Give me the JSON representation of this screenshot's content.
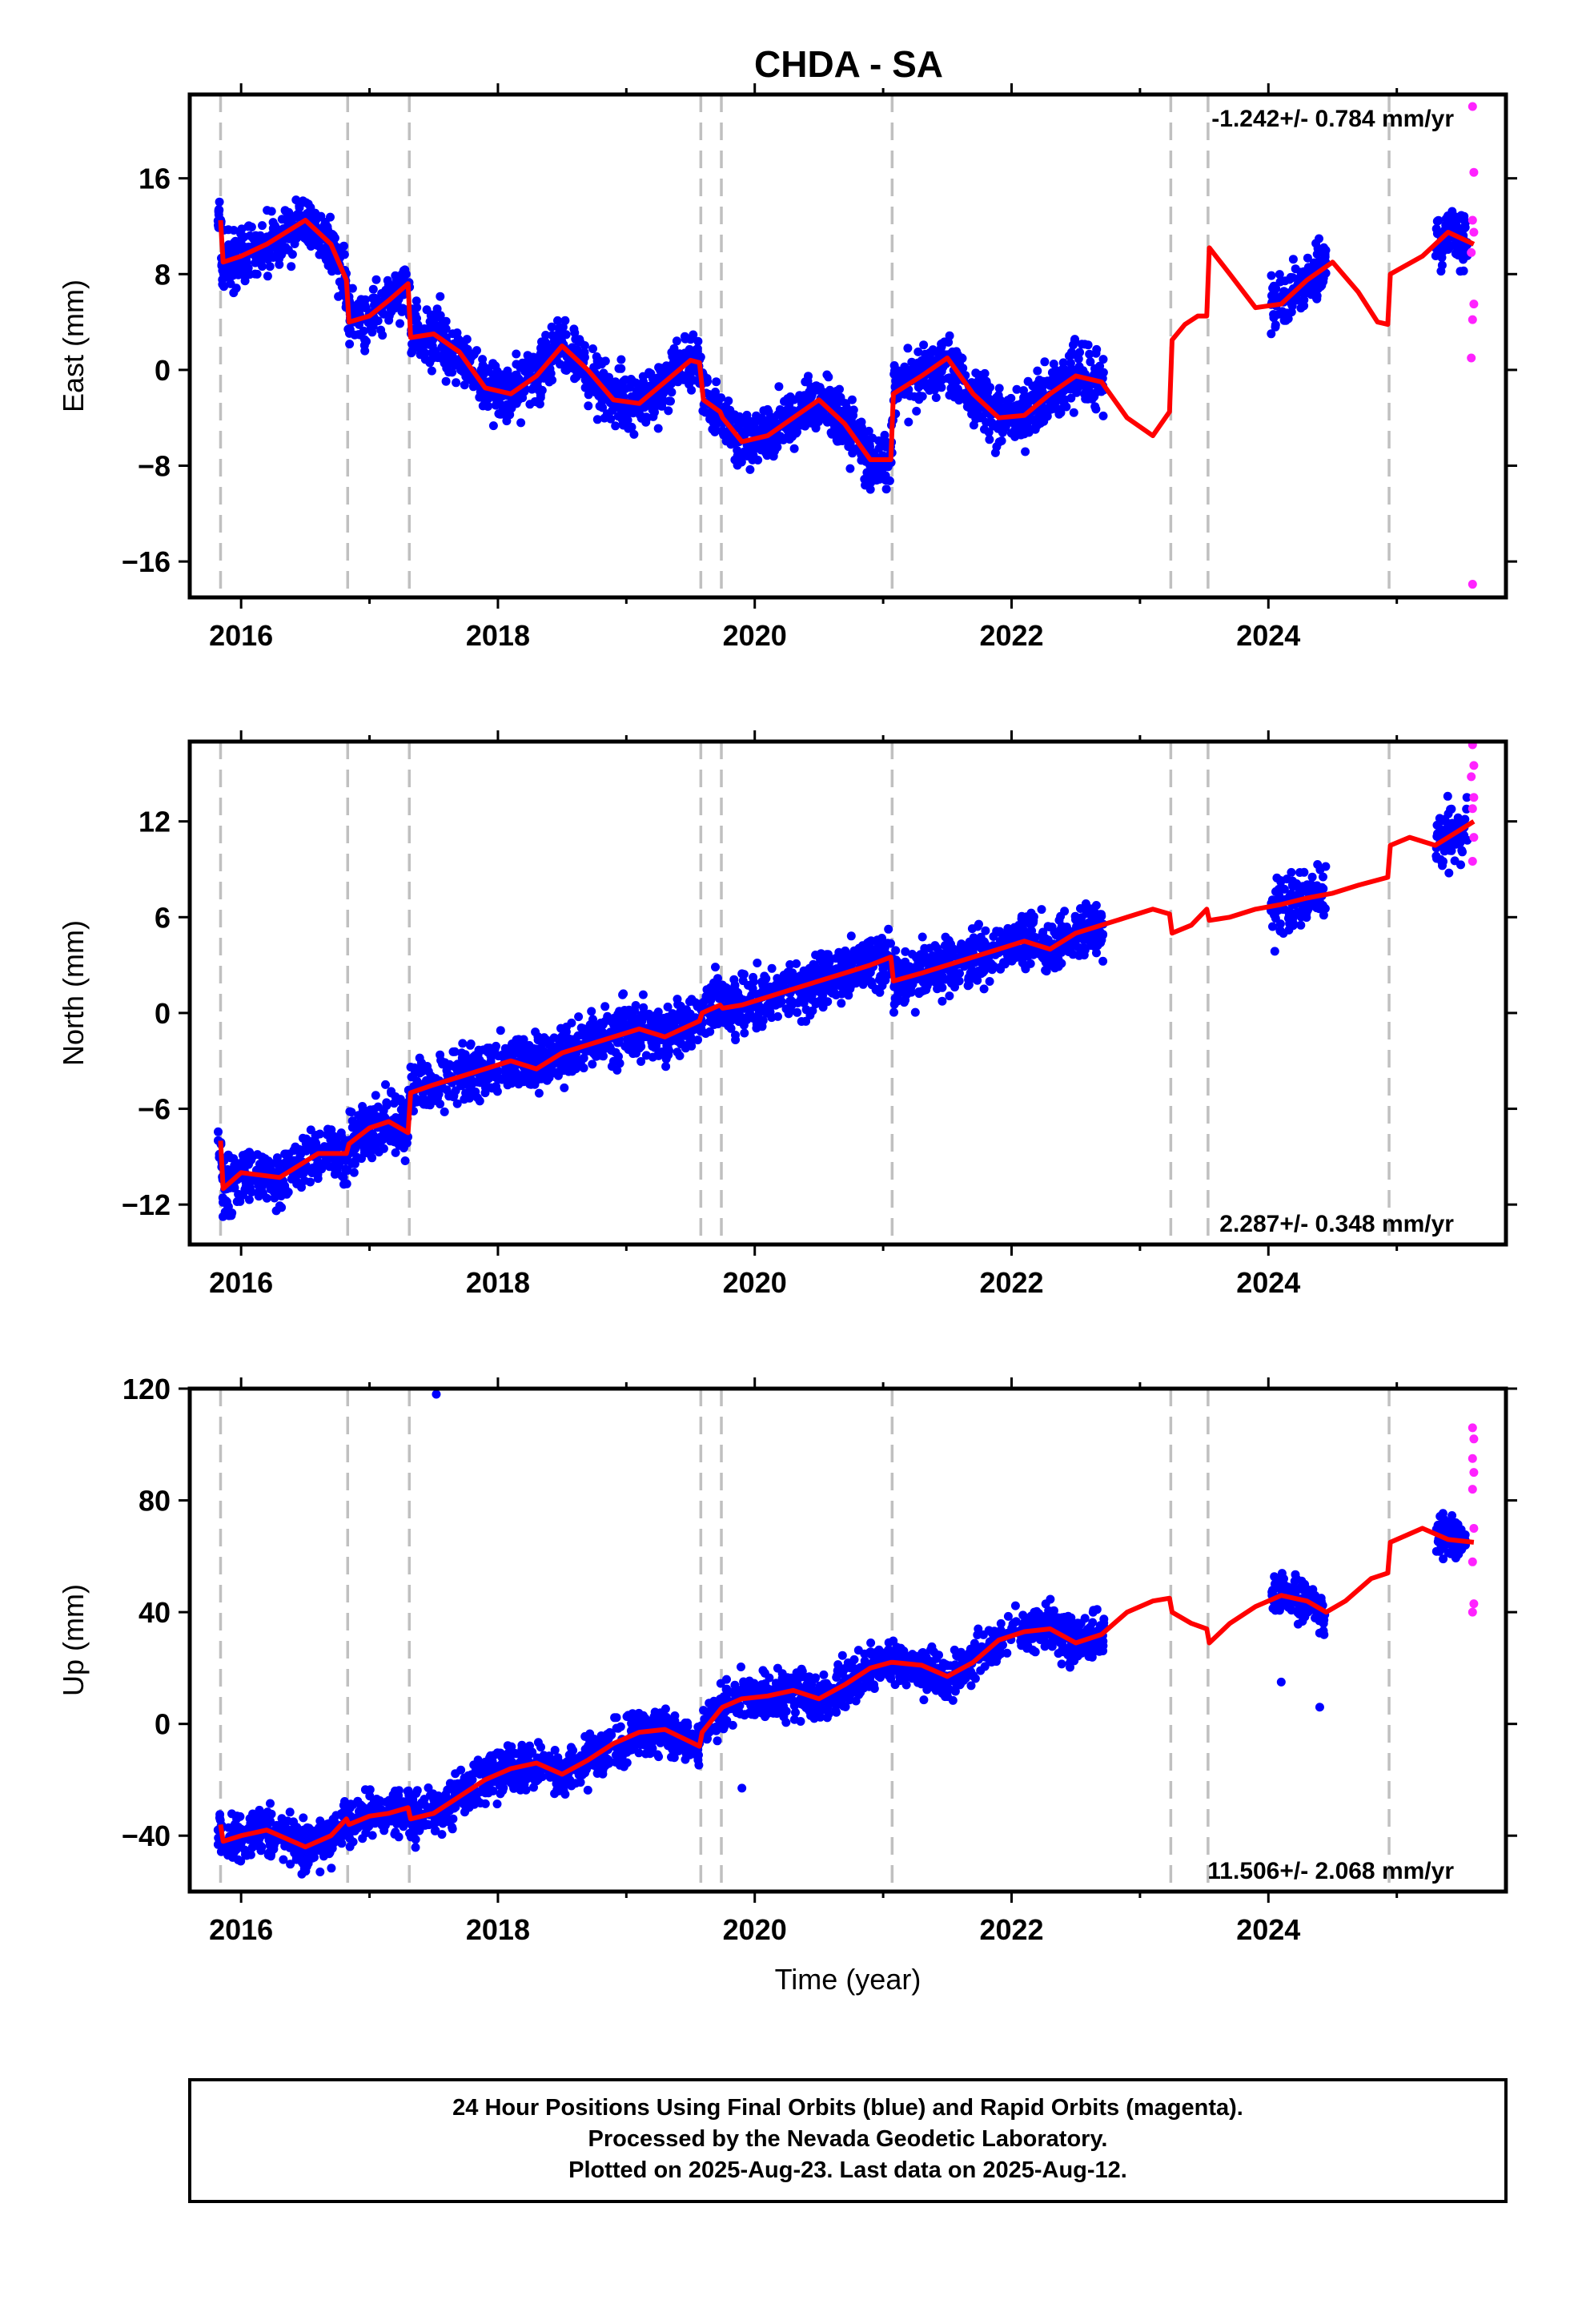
{
  "title": "CHDA - SA",
  "colors": {
    "final_orbits": "#0000ff",
    "rapid_orbits": "#ff22ff",
    "model": "#ff0000",
    "event_lines": "#c0c0c0",
    "frame": "#000000"
  },
  "chart_data": [
    {
      "type": "scatter",
      "id": "east",
      "ylabel": "East (mm)",
      "xlabel": "",
      "xlim": [
        2015.6,
        2025.85
      ],
      "ylim": [
        -19,
        23
      ],
      "xticks": [
        "2016",
        "2018",
        "2020",
        "2022",
        "2024"
      ],
      "yticks": [
        "16",
        "8",
        "0",
        "−8",
        "−16"
      ],
      "rate_text": "-1.242+/- 0.784 mm/yr",
      "rate_position": "top-right",
      "grid": false,
      "event_lines": [
        2015.84,
        2016.83,
        2017.31,
        2019.58,
        2019.74,
        2021.07,
        2023.24,
        2023.53,
        2024.94
      ],
      "data_ranges": [
        [
          2015.82,
          2022.72
        ],
        [
          2024.02,
          2024.45
        ],
        [
          2025.3,
          2025.55
        ]
      ],
      "model_curve": [
        [
          2015.84,
          12.5
        ],
        [
          2015.86,
          9.0
        ],
        [
          2016.0,
          9.5
        ],
        [
          2016.2,
          10.5
        ],
        [
          2016.5,
          12.5
        ],
        [
          2016.7,
          10.5
        ],
        [
          2016.82,
          7.5
        ],
        [
          2016.84,
          4.0
        ],
        [
          2017.0,
          4.5
        ],
        [
          2017.15,
          5.8
        ],
        [
          2017.3,
          7.2
        ],
        [
          2017.32,
          2.7
        ],
        [
          2017.5,
          3.0
        ],
        [
          2017.7,
          1.5
        ],
        [
          2017.9,
          -1.5
        ],
        [
          2018.1,
          -2.0
        ],
        [
          2018.3,
          -0.5
        ],
        [
          2018.5,
          2.0
        ],
        [
          2018.7,
          0.0
        ],
        [
          2018.9,
          -2.5
        ],
        [
          2019.1,
          -2.8
        ],
        [
          2019.3,
          -1.0
        ],
        [
          2019.5,
          0.8
        ],
        [
          2019.57,
          0.6
        ],
        [
          2019.6,
          -2.5
        ],
        [
          2019.73,
          -3.5
        ],
        [
          2019.75,
          -4.0
        ],
        [
          2019.9,
          -6.0
        ],
        [
          2020.1,
          -5.5
        ],
        [
          2020.3,
          -4.0
        ],
        [
          2020.5,
          -2.5
        ],
        [
          2020.7,
          -4.5
        ],
        [
          2020.9,
          -7.5
        ],
        [
          2021.06,
          -7.5
        ],
        [
          2021.08,
          -2.0
        ],
        [
          2021.3,
          -0.5
        ],
        [
          2021.5,
          1.0
        ],
        [
          2021.7,
          -2.0
        ],
        [
          2021.9,
          -4.0
        ],
        [
          2022.1,
          -3.8
        ],
        [
          2022.3,
          -2.0
        ],
        [
          2022.5,
          -0.5
        ],
        [
          2022.7,
          -1.0
        ],
        [
          2022.9,
          -4.0
        ],
        [
          2023.1,
          -5.5
        ],
        [
          2023.23,
          -3.5
        ],
        [
          2023.25,
          2.5
        ],
        [
          2023.35,
          3.8
        ],
        [
          2023.45,
          4.5
        ],
        [
          2023.52,
          4.5
        ],
        [
          2023.54,
          10.2
        ],
        [
          2023.7,
          8.0
        ],
        [
          2023.9,
          5.2
        ],
        [
          2024.1,
          5.5
        ],
        [
          2024.3,
          7.5
        ],
        [
          2024.5,
          9.0
        ],
        [
          2024.7,
          6.5
        ],
        [
          2024.85,
          4.0
        ],
        [
          2024.93,
          3.8
        ],
        [
          2024.95,
          8.0
        ],
        [
          2025.2,
          9.5
        ],
        [
          2025.4,
          11.5
        ],
        [
          2025.6,
          10.5
        ]
      ],
      "rapid_points": [
        [
          2025.59,
          22.0
        ],
        [
          2025.6,
          16.5
        ],
        [
          2025.59,
          12.5
        ],
        [
          2025.6,
          11.5
        ],
        [
          2025.58,
          9.8
        ],
        [
          2025.6,
          5.5
        ],
        [
          2025.59,
          4.2
        ],
        [
          2025.58,
          1.0
        ],
        [
          2025.59,
          -17.9
        ]
      ]
    },
    {
      "type": "scatter",
      "id": "north",
      "ylabel": "North (mm)",
      "xlabel": "",
      "xlim": [
        2015.6,
        2025.85
      ],
      "ylim": [
        -14.5,
        17
      ],
      "xticks": [
        "2016",
        "2018",
        "2020",
        "2022",
        "2024"
      ],
      "yticks": [
        "12",
        "6",
        "0",
        "−6",
        "−12"
      ],
      "rate_text": "2.287+/- 0.348 mm/yr",
      "rate_position": "bottom-right",
      "grid": false,
      "event_lines": [
        2015.84,
        2016.83,
        2017.31,
        2019.58,
        2019.74,
        2021.07,
        2023.24,
        2023.53,
        2024.94
      ],
      "data_ranges": [
        [
          2015.82,
          2022.72
        ],
        [
          2024.02,
          2024.45
        ],
        [
          2025.3,
          2025.55
        ]
      ],
      "model_curve": [
        [
          2015.84,
          -8.0
        ],
        [
          2015.86,
          -11.0
        ],
        [
          2016.0,
          -10.0
        ],
        [
          2016.3,
          -10.3
        ],
        [
          2016.6,
          -8.8
        ],
        [
          2016.82,
          -8.8
        ],
        [
          2016.84,
          -8.2
        ],
        [
          2017.0,
          -7.2
        ],
        [
          2017.15,
          -6.8
        ],
        [
          2017.3,
          -7.5
        ],
        [
          2017.32,
          -5.0
        ],
        [
          2017.5,
          -4.5
        ],
        [
          2017.7,
          -4.0
        ],
        [
          2017.9,
          -3.5
        ],
        [
          2018.1,
          -3.0
        ],
        [
          2018.3,
          -3.5
        ],
        [
          2018.5,
          -2.5
        ],
        [
          2018.7,
          -2.0
        ],
        [
          2018.9,
          -1.5
        ],
        [
          2019.1,
          -1.0
        ],
        [
          2019.3,
          -1.5
        ],
        [
          2019.57,
          -0.5
        ],
        [
          2019.59,
          0.0
        ],
        [
          2019.73,
          0.5
        ],
        [
          2019.75,
          0.3
        ],
        [
          2019.9,
          0.5
        ],
        [
          2020.1,
          1.0
        ],
        [
          2020.3,
          1.5
        ],
        [
          2020.5,
          2.0
        ],
        [
          2020.7,
          2.5
        ],
        [
          2020.9,
          3.0
        ],
        [
          2021.06,
          3.5
        ],
        [
          2021.08,
          2.0
        ],
        [
          2021.3,
          2.5
        ],
        [
          2021.5,
          3.0
        ],
        [
          2021.7,
          3.5
        ],
        [
          2021.9,
          4.0
        ],
        [
          2022.1,
          4.5
        ],
        [
          2022.3,
          4.0
        ],
        [
          2022.5,
          5.0
        ],
        [
          2022.7,
          5.5
        ],
        [
          2022.9,
          6.0
        ],
        [
          2023.1,
          6.5
        ],
        [
          2023.23,
          6.2
        ],
        [
          2023.25,
          5.0
        ],
        [
          2023.4,
          5.5
        ],
        [
          2023.52,
          6.5
        ],
        [
          2023.54,
          5.8
        ],
        [
          2023.7,
          6.0
        ],
        [
          2023.9,
          6.5
        ],
        [
          2024.1,
          6.8
        ],
        [
          2024.3,
          7.2
        ],
        [
          2024.5,
          7.5
        ],
        [
          2024.7,
          8.0
        ],
        [
          2024.93,
          8.5
        ],
        [
          2024.95,
          10.5
        ],
        [
          2025.1,
          11.0
        ],
        [
          2025.3,
          10.5
        ],
        [
          2025.5,
          11.5
        ],
        [
          2025.6,
          12.0
        ]
      ],
      "rapid_points": [
        [
          2025.59,
          16.8
        ],
        [
          2025.6,
          15.5
        ],
        [
          2025.58,
          14.8
        ],
        [
          2025.6,
          13.5
        ],
        [
          2025.59,
          12.8
        ],
        [
          2025.6,
          11.0
        ],
        [
          2025.59,
          9.5
        ]
      ]
    },
    {
      "type": "scatter",
      "id": "up",
      "ylabel": "Up (mm)",
      "xlabel": "Time (year)",
      "xlim": [
        2015.6,
        2025.85
      ],
      "ylim": [
        -60,
        120
      ],
      "xticks": [
        "2016",
        "2018",
        "2020",
        "2022",
        "2024"
      ],
      "yticks": [
        "120",
        "80",
        "40",
        "0",
        "−40"
      ],
      "rate_text": "11.506+/- 2.068 mm/yr",
      "rate_position": "bottom-right",
      "grid": false,
      "event_lines": [
        2015.84,
        2016.83,
        2017.31,
        2019.58,
        2019.74,
        2021.07,
        2023.24,
        2023.53,
        2024.94
      ],
      "data_ranges": [
        [
          2015.82,
          2022.72
        ],
        [
          2024.02,
          2024.45
        ],
        [
          2025.3,
          2025.55
        ]
      ],
      "outliers": [
        [
          2017.52,
          118.0
        ],
        [
          2019.9,
          -23.0
        ],
        [
          2024.1,
          15.0
        ],
        [
          2024.4,
          6.0
        ]
      ],
      "model_curve": [
        [
          2015.84,
          -36.0
        ],
        [
          2015.86,
          -42.0
        ],
        [
          2016.0,
          -40.0
        ],
        [
          2016.2,
          -38.0
        ],
        [
          2016.5,
          -44.0
        ],
        [
          2016.7,
          -40.0
        ],
        [
          2016.82,
          -34.0
        ],
        [
          2016.84,
          -36.0
        ],
        [
          2017.0,
          -33.0
        ],
        [
          2017.15,
          -32.0
        ],
        [
          2017.3,
          -30.0
        ],
        [
          2017.32,
          -34.0
        ],
        [
          2017.5,
          -32.0
        ],
        [
          2017.7,
          -26.0
        ],
        [
          2017.9,
          -20.0
        ],
        [
          2018.1,
          -16.0
        ],
        [
          2018.3,
          -14.0
        ],
        [
          2018.5,
          -18.0
        ],
        [
          2018.7,
          -13.0
        ],
        [
          2018.9,
          -7.0
        ],
        [
          2019.1,
          -3.0
        ],
        [
          2019.3,
          -2.0
        ],
        [
          2019.57,
          -8.0
        ],
        [
          2019.59,
          -3.0
        ],
        [
          2019.73,
          5.0
        ],
        [
          2019.75,
          6.0
        ],
        [
          2019.9,
          9.0
        ],
        [
          2020.1,
          10.0
        ],
        [
          2020.3,
          12.0
        ],
        [
          2020.5,
          9.0
        ],
        [
          2020.7,
          14.0
        ],
        [
          2020.9,
          20.0
        ],
        [
          2021.06,
          22.0
        ],
        [
          2021.08,
          22.0
        ],
        [
          2021.3,
          21.0
        ],
        [
          2021.5,
          17.0
        ],
        [
          2021.7,
          22.0
        ],
        [
          2021.9,
          30.0
        ],
        [
          2022.1,
          33.0
        ],
        [
          2022.3,
          34.0
        ],
        [
          2022.5,
          29.0
        ],
        [
          2022.7,
          32.0
        ],
        [
          2022.9,
          40.0
        ],
        [
          2023.1,
          44.0
        ],
        [
          2023.23,
          45.0
        ],
        [
          2023.25,
          40.0
        ],
        [
          2023.4,
          36.0
        ],
        [
          2023.52,
          34.0
        ],
        [
          2023.54,
          29.0
        ],
        [
          2023.7,
          36.0
        ],
        [
          2023.9,
          42.0
        ],
        [
          2024.1,
          46.0
        ],
        [
          2024.3,
          44.0
        ],
        [
          2024.45,
          40.0
        ],
        [
          2024.6,
          44.0
        ],
        [
          2024.8,
          52.0
        ],
        [
          2024.93,
          54.0
        ],
        [
          2024.95,
          65.0
        ],
        [
          2025.2,
          70.0
        ],
        [
          2025.4,
          66.0
        ],
        [
          2025.6,
          65.0
        ]
      ],
      "rapid_points": [
        [
          2025.59,
          106.0
        ],
        [
          2025.6,
          102.0
        ],
        [
          2025.59,
          95.0
        ],
        [
          2025.6,
          90.0
        ],
        [
          2025.59,
          84.0
        ],
        [
          2025.6,
          70.0
        ],
        [
          2025.59,
          58.0
        ],
        [
          2025.6,
          43.0
        ],
        [
          2025.59,
          40.0
        ]
      ]
    }
  ],
  "footer": {
    "line1": "24 Hour Positions Using Final Orbits (blue) and Rapid Orbits (magenta).",
    "line2": "Processed by the Nevada Geodetic Laboratory.",
    "line3": "Plotted on 2025-Aug-23. Last data on 2025-Aug-12."
  }
}
